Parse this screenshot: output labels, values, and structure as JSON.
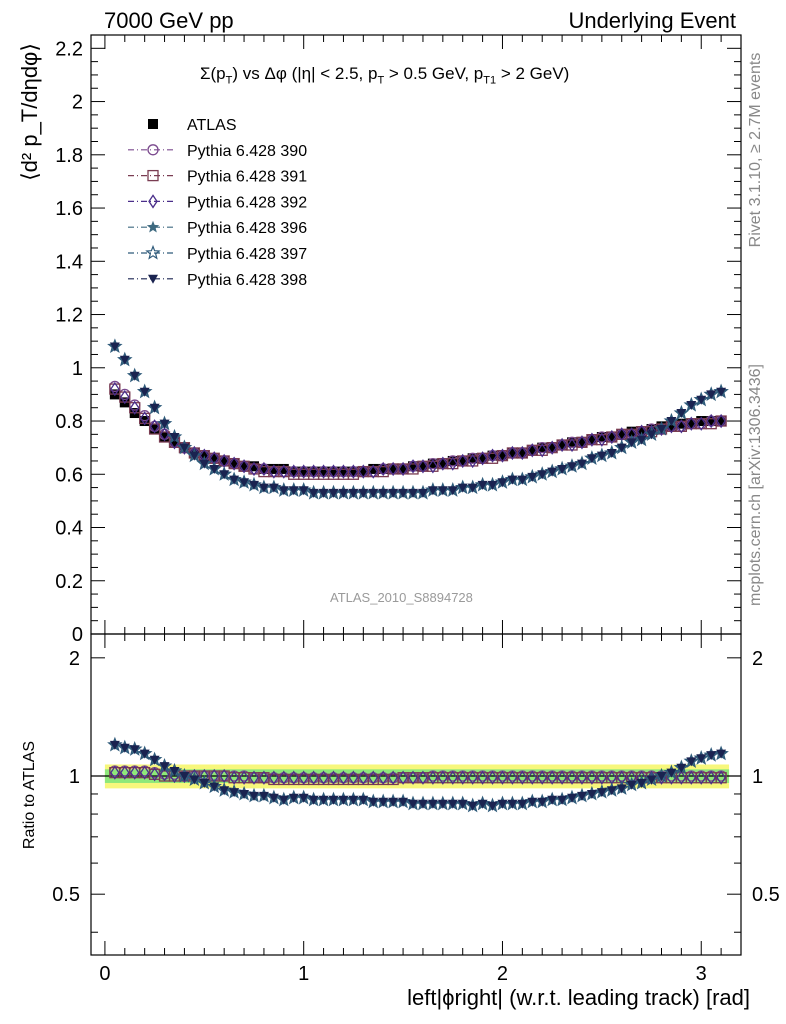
{
  "header": {
    "left": "7000 GeV pp",
    "right": "Underlying Event"
  },
  "side_labels": {
    "rivet": "Rivet 3.1.10, ≥ 2.7M events",
    "mcplots": "mcplots.cern.ch [arXiv:1306.3436]"
  },
  "watermark": "ATLAS_2010_S8894728",
  "title": {
    "main": "Σ(p",
    "sub1": "T",
    "part2": ") vs Δφ (|η| < 2.5, p",
    "sub2": "T",
    "part3": " > 0.5 GeV, p",
    "sub3": "T1",
    "part4": " > 2 GeV)"
  },
  "ylabel_main": "⟨d² p_T/dηdφ⟩",
  "ylabel_ratio": "Ratio to ATLAS",
  "xlabel": "left|ϕright| (w.r.t. leading track) [rad]",
  "legend": [
    {
      "label": "ATLAS",
      "color": "#000000",
      "marker": "filled-square"
    },
    {
      "label": "Pythia 6.428 390",
      "color": "#7b4a8e",
      "marker": "open-circle"
    },
    {
      "label": "Pythia 6.428 391",
      "color": "#7a3d52",
      "marker": "open-square"
    },
    {
      "label": "Pythia 6.428 392",
      "color": "#4a2e8a",
      "marker": "open-diamond"
    },
    {
      "label": "Pythia 6.428 396",
      "color": "#3e6a80",
      "marker": "filled-star"
    },
    {
      "label": "Pythia 6.428 397",
      "color": "#2e5a7a",
      "marker": "open-star"
    },
    {
      "label": "Pythia 6.428 398",
      "color": "#1a2350",
      "marker": "filled-triangle-down"
    }
  ],
  "chart_data": [
    {
      "type": "scatter",
      "panel": "main",
      "xlim": [
        -0.07,
        3.2
      ],
      "ylim": [
        0,
        2.25
      ],
      "yticks": [
        "0",
        "0.2",
        "0.4",
        "0.6",
        "0.8",
        "1",
        "1.2",
        "1.4",
        "1.6",
        "1.8",
        "2",
        "2.2"
      ],
      "x": [
        0.05,
        0.1,
        0.15,
        0.2,
        0.25,
        0.3,
        0.35,
        0.4,
        0.45,
        0.5,
        0.55,
        0.6,
        0.65,
        0.7,
        0.75,
        0.8,
        0.85,
        0.9,
        0.95,
        1.0,
        1.05,
        1.1,
        1.15,
        1.2,
        1.25,
        1.3,
        1.35,
        1.4,
        1.45,
        1.5,
        1.55,
        1.6,
        1.65,
        1.7,
        1.75,
        1.8,
        1.85,
        1.9,
        1.95,
        2.0,
        2.05,
        2.1,
        2.15,
        2.2,
        2.25,
        2.3,
        2.35,
        2.4,
        2.45,
        2.5,
        2.55,
        2.6,
        2.65,
        2.7,
        2.75,
        2.8,
        2.85,
        2.9,
        2.95,
        3.0,
        3.05,
        3.1
      ],
      "series": [
        {
          "name": "ATLAS",
          "values": [
            0.9,
            0.87,
            0.83,
            0.8,
            0.77,
            0.74,
            0.72,
            0.7,
            0.68,
            0.67,
            0.66,
            0.65,
            0.64,
            0.63,
            0.63,
            0.62,
            0.62,
            0.62,
            0.61,
            0.61,
            0.61,
            0.61,
            0.61,
            0.61,
            0.61,
            0.61,
            0.62,
            0.62,
            0.62,
            0.62,
            0.63,
            0.63,
            0.64,
            0.64,
            0.65,
            0.65,
            0.66,
            0.66,
            0.67,
            0.67,
            0.68,
            0.68,
            0.69,
            0.7,
            0.7,
            0.71,
            0.72,
            0.72,
            0.73,
            0.74,
            0.74,
            0.75,
            0.76,
            0.76,
            0.77,
            0.78,
            0.78,
            0.79,
            0.79,
            0.8,
            0.8,
            0.8
          ]
        },
        {
          "name": "Pythia 6.428 390",
          "values": [
            0.93,
            0.9,
            0.86,
            0.82,
            0.78,
            0.75,
            0.72,
            0.7,
            0.68,
            0.67,
            0.66,
            0.65,
            0.64,
            0.63,
            0.62,
            0.62,
            0.61,
            0.61,
            0.61,
            0.61,
            0.61,
            0.61,
            0.61,
            0.61,
            0.61,
            0.61,
            0.61,
            0.62,
            0.62,
            0.62,
            0.63,
            0.63,
            0.64,
            0.64,
            0.65,
            0.65,
            0.66,
            0.66,
            0.67,
            0.67,
            0.68,
            0.68,
            0.69,
            0.7,
            0.7,
            0.71,
            0.72,
            0.72,
            0.73,
            0.74,
            0.74,
            0.75,
            0.75,
            0.76,
            0.77,
            0.77,
            0.78,
            0.78,
            0.79,
            0.79,
            0.8,
            0.8
          ]
        },
        {
          "name": "Pythia 6.428 391",
          "values": [
            0.92,
            0.89,
            0.85,
            0.81,
            0.77,
            0.74,
            0.72,
            0.7,
            0.68,
            0.67,
            0.66,
            0.65,
            0.64,
            0.63,
            0.62,
            0.61,
            0.61,
            0.61,
            0.6,
            0.6,
            0.6,
            0.6,
            0.6,
            0.6,
            0.6,
            0.61,
            0.61,
            0.61,
            0.62,
            0.62,
            0.62,
            0.63,
            0.63,
            0.64,
            0.64,
            0.65,
            0.65,
            0.66,
            0.66,
            0.67,
            0.68,
            0.68,
            0.69,
            0.69,
            0.7,
            0.71,
            0.71,
            0.72,
            0.73,
            0.73,
            0.74,
            0.75,
            0.75,
            0.76,
            0.76,
            0.77,
            0.78,
            0.78,
            0.79,
            0.79,
            0.79,
            0.8
          ]
        },
        {
          "name": "Pythia 6.428 392",
          "values": [
            0.92,
            0.89,
            0.85,
            0.81,
            0.78,
            0.75,
            0.72,
            0.7,
            0.68,
            0.67,
            0.66,
            0.65,
            0.64,
            0.63,
            0.62,
            0.62,
            0.61,
            0.61,
            0.61,
            0.61,
            0.61,
            0.61,
            0.61,
            0.61,
            0.61,
            0.61,
            0.61,
            0.62,
            0.62,
            0.62,
            0.63,
            0.63,
            0.63,
            0.64,
            0.64,
            0.65,
            0.65,
            0.66,
            0.67,
            0.67,
            0.68,
            0.68,
            0.69,
            0.69,
            0.7,
            0.71,
            0.71,
            0.72,
            0.73,
            0.73,
            0.74,
            0.75,
            0.75,
            0.76,
            0.76,
            0.77,
            0.78,
            0.78,
            0.79,
            0.79,
            0.8,
            0.8
          ]
        },
        {
          "name": "Pythia 6.428 396",
          "values": [
            1.08,
            1.03,
            0.97,
            0.91,
            0.85,
            0.79,
            0.74,
            0.7,
            0.67,
            0.64,
            0.62,
            0.6,
            0.58,
            0.57,
            0.56,
            0.55,
            0.55,
            0.54,
            0.54,
            0.54,
            0.53,
            0.53,
            0.53,
            0.53,
            0.53,
            0.53,
            0.53,
            0.53,
            0.53,
            0.53,
            0.53,
            0.53,
            0.54,
            0.54,
            0.54,
            0.55,
            0.55,
            0.56,
            0.56,
            0.57,
            0.58,
            0.58,
            0.59,
            0.6,
            0.61,
            0.62,
            0.63,
            0.64,
            0.66,
            0.67,
            0.68,
            0.7,
            0.72,
            0.73,
            0.75,
            0.77,
            0.8,
            0.83,
            0.86,
            0.88,
            0.9,
            0.91
          ]
        },
        {
          "name": "Pythia 6.428 397",
          "values": [
            1.08,
            1.03,
            0.97,
            0.91,
            0.85,
            0.79,
            0.74,
            0.7,
            0.67,
            0.64,
            0.62,
            0.6,
            0.58,
            0.57,
            0.56,
            0.55,
            0.55,
            0.54,
            0.54,
            0.54,
            0.53,
            0.53,
            0.53,
            0.53,
            0.53,
            0.53,
            0.53,
            0.53,
            0.53,
            0.53,
            0.53,
            0.53,
            0.54,
            0.54,
            0.54,
            0.55,
            0.55,
            0.56,
            0.56,
            0.57,
            0.58,
            0.58,
            0.59,
            0.6,
            0.61,
            0.62,
            0.63,
            0.64,
            0.66,
            0.67,
            0.68,
            0.7,
            0.72,
            0.73,
            0.75,
            0.77,
            0.8,
            0.83,
            0.86,
            0.88,
            0.9,
            0.91
          ]
        },
        {
          "name": "Pythia 6.428 398",
          "values": [
            1.08,
            1.03,
            0.97,
            0.91,
            0.85,
            0.79,
            0.74,
            0.7,
            0.67,
            0.64,
            0.62,
            0.6,
            0.58,
            0.57,
            0.56,
            0.55,
            0.55,
            0.54,
            0.54,
            0.54,
            0.53,
            0.53,
            0.53,
            0.53,
            0.53,
            0.53,
            0.53,
            0.53,
            0.53,
            0.53,
            0.53,
            0.53,
            0.54,
            0.54,
            0.54,
            0.55,
            0.55,
            0.56,
            0.56,
            0.57,
            0.58,
            0.58,
            0.59,
            0.6,
            0.61,
            0.62,
            0.63,
            0.64,
            0.66,
            0.67,
            0.68,
            0.7,
            0.72,
            0.73,
            0.75,
            0.77,
            0.8,
            0.83,
            0.86,
            0.88,
            0.9,
            0.91
          ]
        }
      ]
    },
    {
      "type": "scatter",
      "panel": "ratio",
      "ylabel": "Ratio to ATLAS",
      "xlabel": "left|ϕright| (w.r.t. leading track) [rad]",
      "xlim": [
        -0.07,
        3.2
      ],
      "ylim": [
        0.35,
        2.3
      ],
      "log_y": true,
      "xticks": [
        "0",
        "1",
        "2",
        "3"
      ],
      "yticks": [
        "0.5",
        "1",
        "2"
      ],
      "band": {
        "inner": [
          0.96,
          1.04
        ],
        "outer": [
          0.93,
          1.07
        ],
        "inner_color": "#8ee87a",
        "outer_color": "#f7f77c"
      },
      "x": [
        0.05,
        0.1,
        0.15,
        0.2,
        0.25,
        0.3,
        0.35,
        0.4,
        0.45,
        0.5,
        0.55,
        0.6,
        0.65,
        0.7,
        0.75,
        0.8,
        0.85,
        0.9,
        0.95,
        1.0,
        1.05,
        1.1,
        1.15,
        1.2,
        1.25,
        1.3,
        1.35,
        1.4,
        1.45,
        1.5,
        1.55,
        1.6,
        1.65,
        1.7,
        1.75,
        1.8,
        1.85,
        1.9,
        1.95,
        2.0,
        2.05,
        2.1,
        2.15,
        2.2,
        2.25,
        2.3,
        2.35,
        2.4,
        2.45,
        2.5,
        2.55,
        2.6,
        2.65,
        2.7,
        2.75,
        2.8,
        2.85,
        2.9,
        2.95,
        3.0,
        3.05,
        3.1
      ],
      "series": [
        {
          "name": "Pythia 6.428 390",
          "values": [
            1.03,
            1.03,
            1.03,
            1.03,
            1.02,
            1.01,
            1.01,
            1.0,
            1.0,
            1.0,
            1.0,
            1.0,
            1.0,
            1.0,
            0.99,
            0.99,
            0.99,
            0.99,
            0.99,
            0.99,
            0.99,
            0.99,
            0.99,
            0.99,
            0.99,
            0.99,
            0.99,
            0.99,
            0.99,
            0.99,
            0.99,
            0.99,
            1.0,
            1.0,
            1.0,
            1.0,
            1.0,
            1.0,
            1.0,
            1.0,
            1.0,
            1.0,
            1.0,
            1.0,
            1.0,
            1.0,
            1.0,
            1.0,
            1.0,
            1.0,
            1.0,
            1.0,
            1.0,
            1.0,
            1.0,
            1.0,
            1.0,
            1.0,
            1.0,
            1.0,
            1.0,
            1.0
          ]
        },
        {
          "name": "Pythia 6.428 391",
          "values": [
            1.02,
            1.02,
            1.02,
            1.02,
            1.01,
            1.0,
            1.0,
            1.0,
            1.0,
            1.0,
            1.0,
            1.0,
            0.99,
            0.99,
            0.99,
            0.99,
            0.98,
            0.98,
            0.98,
            0.98,
            0.98,
            0.98,
            0.98,
            0.98,
            0.98,
            0.98,
            0.98,
            0.98,
            0.98,
            0.99,
            0.99,
            0.99,
            0.99,
            0.99,
            0.99,
            0.99,
            0.99,
            0.99,
            0.99,
            0.99,
            0.99,
            0.99,
            0.99,
            0.99,
            0.99,
            0.99,
            0.99,
            0.99,
            0.99,
            0.99,
            0.99,
            0.99,
            0.99,
            0.99,
            0.99,
            0.99,
            0.99,
            0.99,
            0.99,
            0.99,
            0.99,
            0.99
          ]
        },
        {
          "name": "Pythia 6.428 392",
          "values": [
            1.02,
            1.02,
            1.02,
            1.02,
            1.01,
            1.01,
            1.0,
            1.0,
            1.0,
            1.0,
            1.0,
            1.0,
            0.99,
            0.99,
            0.99,
            0.99,
            0.99,
            0.99,
            0.99,
            0.99,
            0.99,
            0.99,
            0.99,
            0.99,
            0.99,
            0.99,
            0.99,
            0.99,
            0.99,
            0.99,
            0.99,
            0.99,
            0.99,
            0.99,
            0.99,
            0.99,
            0.99,
            0.99,
            0.99,
            0.99,
            0.99,
            0.99,
            0.99,
            0.99,
            0.99,
            0.99,
            0.99,
            0.99,
            0.99,
            0.99,
            0.99,
            0.99,
            0.99,
            0.99,
            0.99,
            0.99,
            0.99,
            0.99,
            0.99,
            0.99,
            0.99,
            0.99
          ]
        },
        {
          "name": "Pythia 6.428 396",
          "values": [
            1.2,
            1.18,
            1.17,
            1.14,
            1.1,
            1.06,
            1.03,
            1.0,
            0.98,
            0.96,
            0.94,
            0.92,
            0.91,
            0.9,
            0.89,
            0.89,
            0.88,
            0.87,
            0.88,
            0.88,
            0.87,
            0.87,
            0.87,
            0.87,
            0.87,
            0.87,
            0.86,
            0.86,
            0.86,
            0.86,
            0.85,
            0.85,
            0.85,
            0.85,
            0.85,
            0.85,
            0.84,
            0.85,
            0.84,
            0.85,
            0.85,
            0.85,
            0.86,
            0.86,
            0.87,
            0.87,
            0.88,
            0.89,
            0.9,
            0.91,
            0.92,
            0.93,
            0.95,
            0.96,
            0.98,
            1.0,
            1.02,
            1.05,
            1.09,
            1.11,
            1.13,
            1.14
          ]
        },
        {
          "name": "Pythia 6.428 397",
          "values": [
            1.2,
            1.18,
            1.17,
            1.14,
            1.1,
            1.06,
            1.03,
            1.0,
            0.98,
            0.96,
            0.94,
            0.92,
            0.91,
            0.9,
            0.89,
            0.89,
            0.88,
            0.87,
            0.88,
            0.88,
            0.87,
            0.87,
            0.87,
            0.87,
            0.87,
            0.87,
            0.86,
            0.86,
            0.86,
            0.86,
            0.85,
            0.85,
            0.85,
            0.85,
            0.85,
            0.85,
            0.84,
            0.85,
            0.84,
            0.85,
            0.85,
            0.85,
            0.86,
            0.86,
            0.87,
            0.87,
            0.88,
            0.89,
            0.9,
            0.91,
            0.92,
            0.93,
            0.95,
            0.96,
            0.98,
            1.0,
            1.02,
            1.05,
            1.09,
            1.11,
            1.13,
            1.14
          ]
        },
        {
          "name": "Pythia 6.428 398",
          "values": [
            1.2,
            1.18,
            1.17,
            1.14,
            1.1,
            1.06,
            1.03,
            1.0,
            0.98,
            0.96,
            0.94,
            0.92,
            0.91,
            0.9,
            0.89,
            0.89,
            0.88,
            0.87,
            0.88,
            0.88,
            0.87,
            0.87,
            0.87,
            0.87,
            0.87,
            0.87,
            0.86,
            0.86,
            0.86,
            0.86,
            0.85,
            0.85,
            0.85,
            0.85,
            0.85,
            0.85,
            0.84,
            0.85,
            0.84,
            0.85,
            0.85,
            0.85,
            0.86,
            0.86,
            0.87,
            0.87,
            0.88,
            0.89,
            0.9,
            0.91,
            0.92,
            0.93,
            0.95,
            0.96,
            0.98,
            1.0,
            1.02,
            1.05,
            1.09,
            1.11,
            1.13,
            1.14
          ]
        }
      ]
    }
  ]
}
